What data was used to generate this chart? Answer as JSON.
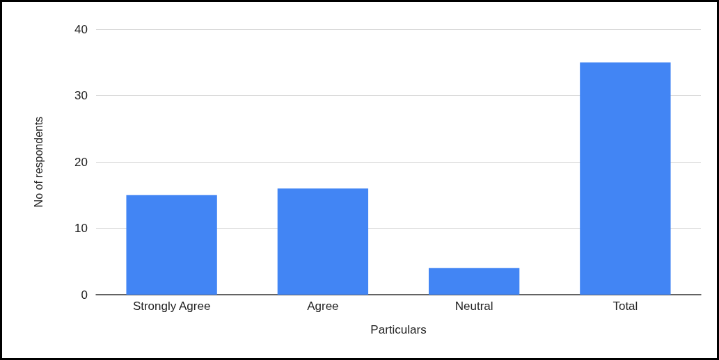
{
  "chart_data": {
    "type": "bar",
    "xlabel": "Particulars",
    "ylabel": "No of respondents",
    "categories": [
      "Strongly Agree",
      "Agree",
      "Neutral",
      "Total"
    ],
    "values": [
      15,
      16,
      4,
      35
    ],
    "color": "#4285f4",
    "ylim": [
      0,
      40
    ],
    "yticks": [
      0,
      10,
      20,
      30,
      40
    ],
    "grid": "y"
  }
}
